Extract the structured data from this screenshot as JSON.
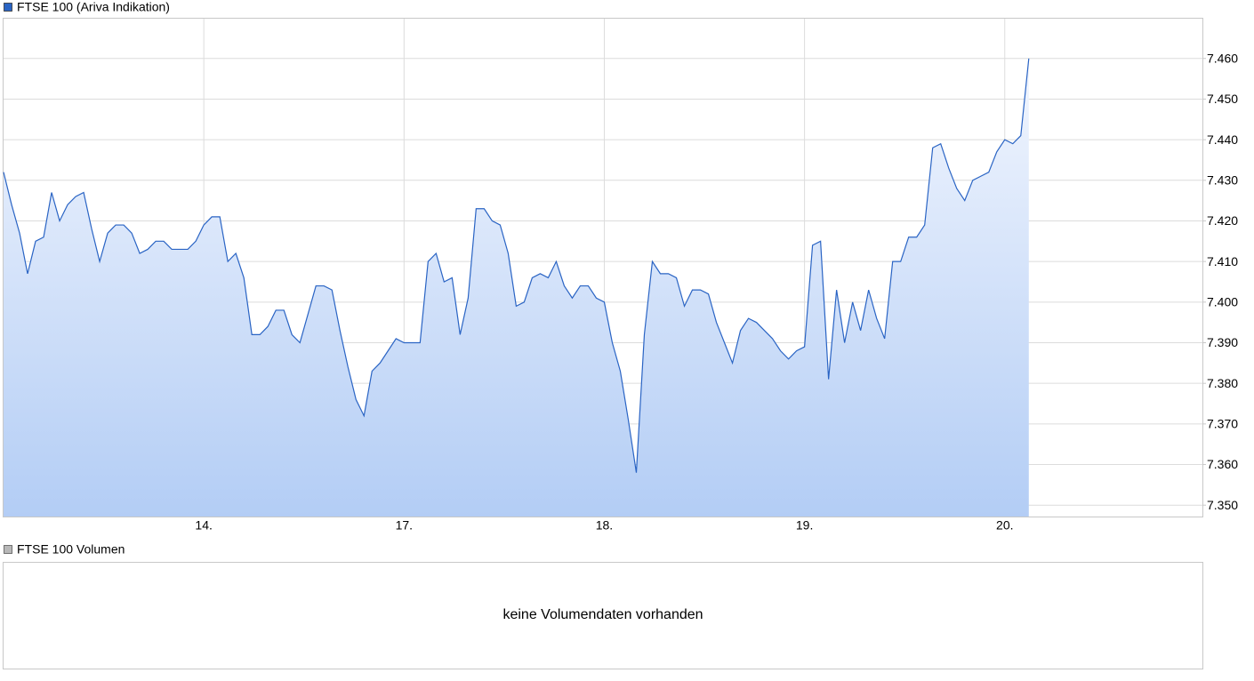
{
  "chart_data": [
    {
      "type": "area",
      "series": [
        {
          "name": "FTSE 100 (Ariva Indikation)",
          "color": "#2a64c4",
          "values": [
            7432,
            7424,
            7417,
            7407,
            7415,
            7416,
            7427,
            7420,
            7424,
            7426,
            7427,
            7418,
            7410,
            7417,
            7419,
            7419,
            7417,
            7412,
            7413,
            7415,
            7415,
            7413,
            7413,
            7413,
            7415,
            7419,
            7421,
            7421,
            7410,
            7412,
            7406,
            7392,
            7392,
            7394,
            7398,
            7398,
            7392,
            7390,
            7397,
            7404,
            7404,
            7403,
            7393,
            7384,
            7376,
            7372,
            7383,
            7385,
            7388,
            7391,
            7390,
            7390,
            7390,
            7410,
            7412,
            7405,
            7406,
            7392,
            7401,
            7423,
            7423,
            7420,
            7419,
            7412,
            7399,
            7400,
            7406,
            7407,
            7406,
            7410,
            7404,
            7401,
            7404,
            7404,
            7401,
            7400,
            7390,
            7383,
            7371,
            7358,
            7392,
            7410,
            7407,
            7407,
            7406,
            7399,
            7403,
            7403,
            7402,
            7395,
            7390,
            7385,
            7393,
            7396,
            7395,
            7393,
            7391,
            7388,
            7386,
            7388,
            7389,
            7414,
            7415,
            7381,
            7403,
            7390,
            7400,
            7393,
            7403,
            7396,
            7391,
            7410,
            7410,
            7416,
            7416,
            7419,
            7438,
            7439,
            7433,
            7428,
            7425,
            7430,
            7431,
            7432,
            7437,
            7440,
            7439,
            7441,
            7460
          ]
        }
      ],
      "x": [
        0,
        0.04,
        0.08,
        0.12,
        0.16,
        0.2,
        0.24,
        0.28,
        0.32,
        0.36,
        0.4,
        0.44,
        0.48,
        0.52,
        0.56,
        0.6,
        0.64,
        0.68,
        0.72,
        0.76,
        0.8,
        0.84,
        0.88,
        0.92,
        0.96,
        1,
        1.04,
        1.08,
        1.12,
        1.16,
        1.2,
        1.24,
        1.28,
        1.32,
        1.36,
        1.4,
        1.44,
        1.48,
        1.52,
        1.56,
        1.6,
        1.64,
        1.68,
        1.72,
        1.76,
        1.8,
        1.84,
        1.88,
        1.92,
        1.96,
        2,
        2.04,
        2.08,
        2.12,
        2.16,
        2.2,
        2.24,
        2.28,
        2.32,
        2.36,
        2.4,
        2.44,
        2.48,
        2.52,
        2.56,
        2.6,
        2.64,
        2.68,
        2.72,
        2.76,
        2.8,
        2.84,
        2.88,
        2.92,
        2.96,
        3,
        3.04,
        3.08,
        3.12,
        3.16,
        3.2,
        3.24,
        3.28,
        3.32,
        3.36,
        3.4,
        3.44,
        3.48,
        3.52,
        3.56,
        3.6,
        3.64,
        3.68,
        3.72,
        3.76,
        3.8,
        3.84,
        3.88,
        3.92,
        3.96,
        4,
        4.04,
        4.08,
        4.12,
        4.16,
        4.2,
        4.24,
        4.28,
        4.32,
        4.36,
        4.4,
        4.44,
        4.48,
        4.52,
        4.56,
        4.6,
        4.64,
        4.68,
        4.72,
        4.76,
        4.8,
        4.84,
        4.88,
        4.92,
        4.96,
        5,
        5.04,
        5.08,
        5.12
      ],
      "xlim": [
        0,
        5.987
      ],
      "xticks": [
        {
          "value": 1,
          "label": "14."
        },
        {
          "value": 2,
          "label": "17."
        },
        {
          "value": 3,
          "label": "18."
        },
        {
          "value": 4,
          "label": "19."
        },
        {
          "value": 5,
          "label": "20."
        }
      ],
      "ylim": [
        7347.2,
        7469.8
      ],
      "yticks": [
        {
          "value": 7350,
          "label": "7.350"
        },
        {
          "value": 7360,
          "label": "7.360"
        },
        {
          "value": 7370,
          "label": "7.370"
        },
        {
          "value": 7380,
          "label": "7.380"
        },
        {
          "value": 7390,
          "label": "7.390"
        },
        {
          "value": 7400,
          "label": "7.400"
        },
        {
          "value": 7410,
          "label": "7.410"
        },
        {
          "value": 7420,
          "label": "7.420"
        },
        {
          "value": 7430,
          "label": "7.430"
        },
        {
          "value": 7440,
          "label": "7.440"
        },
        {
          "value": 7450,
          "label": "7.450"
        },
        {
          "value": 7460,
          "label": "7.460"
        }
      ],
      "grid": true
    },
    {
      "type": "bar",
      "series": [
        {
          "name": "FTSE 100 Volumen",
          "color": "#b8b8b8"
        }
      ],
      "message": "keine Volumendaten vorhanden"
    }
  ]
}
